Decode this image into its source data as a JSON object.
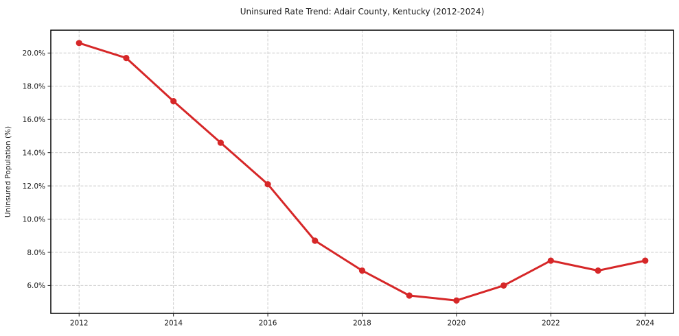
{
  "title": "Uninsured Rate Trend: Adair County, Kentucky (2012-2024)",
  "chart_data": {
    "type": "line",
    "title": "Uninsured Rate Trend: Adair County, Kentucky (2012-2024)",
    "xlabel": "",
    "ylabel": "Uninsured Population (%)",
    "x": [
      2012,
      2013,
      2014,
      2015,
      2016,
      2017,
      2018,
      2019,
      2020,
      2021,
      2022,
      2023,
      2024
    ],
    "values": [
      20.6,
      19.7,
      17.1,
      14.6,
      12.1,
      8.7,
      6.9,
      5.4,
      5.1,
      6.0,
      7.5,
      6.9,
      7.5
    ],
    "series_name": "Uninsured rate",
    "x_ticks": [
      2012,
      2014,
      2016,
      2018,
      2020,
      2022,
      2024
    ],
    "x_tick_labels": [
      "2012",
      "2014",
      "2016",
      "2018",
      "2020",
      "2022",
      "2024"
    ],
    "y_ticks": [
      6,
      8,
      10,
      12,
      14,
      16,
      18,
      20
    ],
    "y_tick_labels": [
      "6.0%",
      "8.0%",
      "10.0%",
      "12.0%",
      "14.0%",
      "16.0%",
      "18.0%",
      "20.0%"
    ],
    "xlim": [
      2011.4,
      2024.6
    ],
    "ylim": [
      4.325,
      21.375
    ],
    "grid": true,
    "legend": false,
    "line_color": "#d62728",
    "marker": "circle"
  }
}
